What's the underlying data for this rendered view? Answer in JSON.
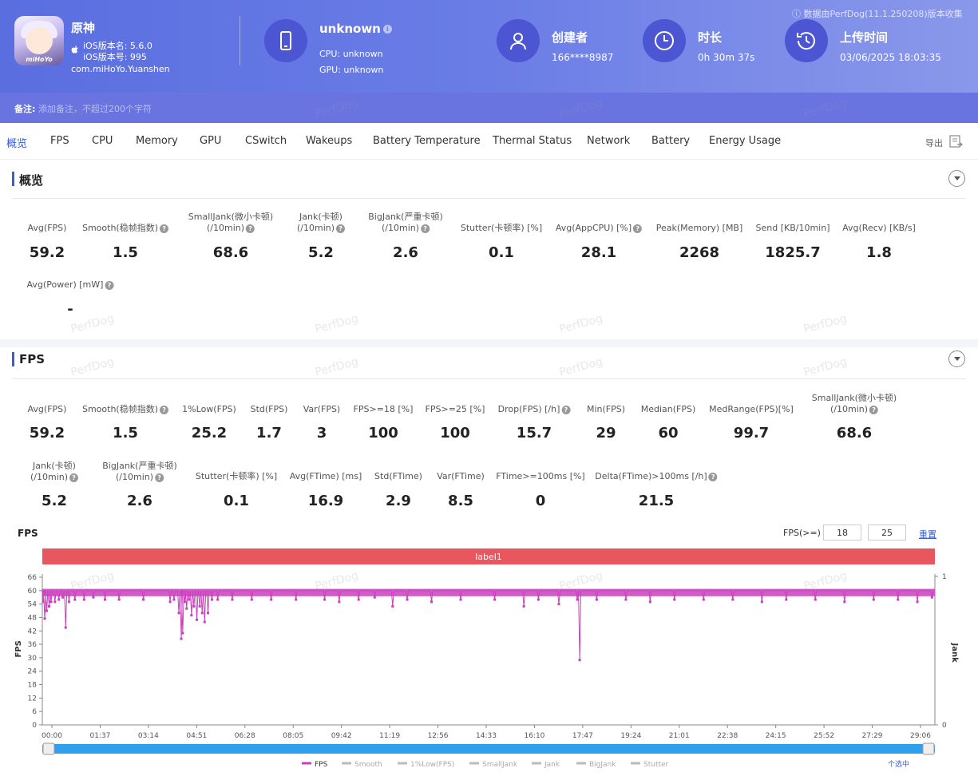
{
  "header": {
    "app_name": "原神",
    "ios_version_name": "iOS版本名: 5.6.0",
    "ios_version_code": "iOS版本号: 995",
    "package": "com.miHoYo.Yuanshen",
    "app_icon_brand": "miHoYo",
    "device_name": "unknown",
    "cpu": "CPU: unknown",
    "gpu": "GPU: unknown",
    "creator_label": "创建者",
    "creator_value": "166****8987",
    "duration_label": "时长",
    "duration_value": "0h 30m 37s",
    "upload_label": "上传时间",
    "upload_value": "03/06/2025 18:03:35",
    "export_note": "数据由PerfDog(11.1.250208)版本收集",
    "note_label": "备注:",
    "note_placeholder": "添加备注，不超过200个字符"
  },
  "tabs": [
    "概览",
    "FPS",
    "CPU",
    "Memory",
    "GPU",
    "CSwitch",
    "Wakeups",
    "Battery Temperature",
    "Thermal Status",
    "Network",
    "Battery",
    "Energy Usage"
  ],
  "export_label": "导出",
  "watermark": "PerfDog",
  "overview": {
    "title": "概览",
    "metrics": [
      {
        "label": "Avg(FPS)",
        "value": "59.2"
      },
      {
        "label": "Smooth(稳帧指数)",
        "value": "1.5"
      },
      {
        "label": "SmallJank(微小卡顿)\n(/10min)",
        "value": "68.6"
      },
      {
        "label": "Jank(卡顿)\n(/10min)",
        "value": "5.2"
      },
      {
        "label": "BigJank(严重卡顿)\n(/10min)",
        "value": "2.6"
      },
      {
        "label": "Stutter(卡顿率) [%]",
        "value": "0.1"
      },
      {
        "label": "Avg(AppCPU) [%]",
        "value": "28.1"
      },
      {
        "label": "Peak(Memory) [MB]",
        "value": "2268"
      },
      {
        "label": "Send [KB/10min]",
        "value": "1825.7"
      },
      {
        "label": "Avg(Recv) [KB/s]",
        "value": "1.8"
      },
      {
        "label": "Avg(Power) [mW]",
        "value": "-"
      }
    ]
  },
  "fps_section": {
    "title": "FPS",
    "metrics": [
      {
        "label": "Avg(FPS)",
        "value": "59.2"
      },
      {
        "label": "Smooth(稳帧指数)",
        "value": "1.5"
      },
      {
        "label": "1%Low(FPS)",
        "value": "25.2"
      },
      {
        "label": "Std(FPS)",
        "value": "1.7"
      },
      {
        "label": "Var(FPS)",
        "value": "3"
      },
      {
        "label": "FPS>=18 [%]",
        "value": "100"
      },
      {
        "label": "FPS>=25 [%]",
        "value": "100"
      },
      {
        "label": "Drop(FPS) [/h]",
        "value": "15.7"
      },
      {
        "label": "Min(FPS)",
        "value": "29"
      },
      {
        "label": "Median(FPS)",
        "value": "60"
      },
      {
        "label": "MedRange(FPS)[%]",
        "value": "99.7"
      },
      {
        "label": "SmallJank(微小卡顿)\n(/10min)",
        "value": "68.6"
      },
      {
        "label": "Jank(卡顿)\n(/10min)",
        "value": "5.2"
      },
      {
        "label": "BigJank(严重卡顿)\n(/10min)",
        "value": "2.6"
      },
      {
        "label": "Stutter(卡顿率) [%]",
        "value": "0.1"
      },
      {
        "label": "Avg(FTime) [ms]",
        "value": "16.9"
      },
      {
        "label": "Std(FTime)",
        "value": "2.9"
      },
      {
        "label": "Var(FTime)",
        "value": "8.5"
      },
      {
        "label": "FTime>=100ms [%]",
        "value": "0"
      },
      {
        "label": "Delta(FTime)>100ms [/h]",
        "value": "21.5"
      }
    ],
    "chart_title": "FPS",
    "threshold_label": "FPS(>=)",
    "threshold_1": "18",
    "threshold_2": "25",
    "reset_label": "重置",
    "band_label": "label1",
    "legend": [
      "FPS",
      "Smooth",
      "1%Low(FPS)",
      "SmallJank",
      "Jank",
      "BigJank",
      "Stutter"
    ],
    "select_label": "个选中"
  },
  "colors": {
    "accent": "#3a5ecf",
    "fps_series": "#c940bd",
    "band": "#e8565f",
    "slider": "#2ea0ee"
  },
  "chart_data": {
    "type": "line",
    "title": "FPS",
    "ylabel": "FPS",
    "y2label": "Jank",
    "yticks": [
      0,
      6,
      12,
      18,
      24,
      30,
      36,
      42,
      48,
      54,
      60,
      66
    ],
    "y2ticks": [
      0,
      1
    ],
    "xticks": [
      "00:00",
      "01:37",
      "03:14",
      "04:51",
      "06:28",
      "08:05",
      "09:42",
      "11:19",
      "12:56",
      "14:33",
      "16:10",
      "17:47",
      "19:24",
      "21:01",
      "22:38",
      "24:15",
      "25:52",
      "27:29",
      "29:06"
    ],
    "ylim": [
      0,
      66
    ],
    "duration_s": 1837,
    "baseline": 60,
    "dips": [
      {
        "t": 2,
        "v": 55
      },
      {
        "t": 5,
        "v": 47.5
      },
      {
        "t": 9,
        "v": 51
      },
      {
        "t": 14,
        "v": 53
      },
      {
        "t": 18,
        "v": 55
      },
      {
        "t": 26,
        "v": 55
      },
      {
        "t": 34,
        "v": 56
      },
      {
        "t": 42,
        "v": 57
      },
      {
        "t": 48,
        "v": 43.5
      },
      {
        "t": 55,
        "v": 55
      },
      {
        "t": 67,
        "v": 56
      },
      {
        "t": 86,
        "v": 56
      },
      {
        "t": 105,
        "v": 57
      },
      {
        "t": 129,
        "v": 56
      },
      {
        "t": 158,
        "v": 56
      },
      {
        "t": 208,
        "v": 56
      },
      {
        "t": 263,
        "v": 55
      },
      {
        "t": 271,
        "v": 56
      },
      {
        "t": 281,
        "v": 50
      },
      {
        "t": 286,
        "v": 38.5
      },
      {
        "t": 289,
        "v": 41
      },
      {
        "t": 293,
        "v": 55
      },
      {
        "t": 297,
        "v": 52
      },
      {
        "t": 302,
        "v": 56
      },
      {
        "t": 307,
        "v": 49
      },
      {
        "t": 312,
        "v": 53
      },
      {
        "t": 318,
        "v": 47
      },
      {
        "t": 324,
        "v": 53
      },
      {
        "t": 329,
        "v": 50
      },
      {
        "t": 334,
        "v": 46
      },
      {
        "t": 341,
        "v": 50
      },
      {
        "t": 349,
        "v": 56
      },
      {
        "t": 361,
        "v": 56
      },
      {
        "t": 391,
        "v": 56
      },
      {
        "t": 431,
        "v": 56
      },
      {
        "t": 471,
        "v": 56
      },
      {
        "t": 522,
        "v": 56
      },
      {
        "t": 581,
        "v": 56
      },
      {
        "t": 611,
        "v": 55
      },
      {
        "t": 651,
        "v": 56
      },
      {
        "t": 684,
        "v": 57
      },
      {
        "t": 721,
        "v": 53
      },
      {
        "t": 751,
        "v": 56
      },
      {
        "t": 801,
        "v": 55
      },
      {
        "t": 861,
        "v": 56
      },
      {
        "t": 931,
        "v": 56
      },
      {
        "t": 991,
        "v": 53
      },
      {
        "t": 1021,
        "v": 56
      },
      {
        "t": 1063,
        "v": 54
      },
      {
        "t": 1101,
        "v": 56
      },
      {
        "t": 1106,
        "v": 29
      },
      {
        "t": 1141,
        "v": 56
      },
      {
        "t": 1201,
        "v": 56
      },
      {
        "t": 1251,
        "v": 55
      },
      {
        "t": 1301,
        "v": 56
      },
      {
        "t": 1361,
        "v": 56
      },
      {
        "t": 1421,
        "v": 56
      },
      {
        "t": 1481,
        "v": 55
      },
      {
        "t": 1531,
        "v": 56
      },
      {
        "t": 1591,
        "v": 56
      },
      {
        "t": 1651,
        "v": 55
      },
      {
        "t": 1711,
        "v": 56
      },
      {
        "t": 1761,
        "v": 56
      },
      {
        "t": 1801,
        "v": 55
      },
      {
        "t": 1831,
        "v": 57
      }
    ]
  }
}
